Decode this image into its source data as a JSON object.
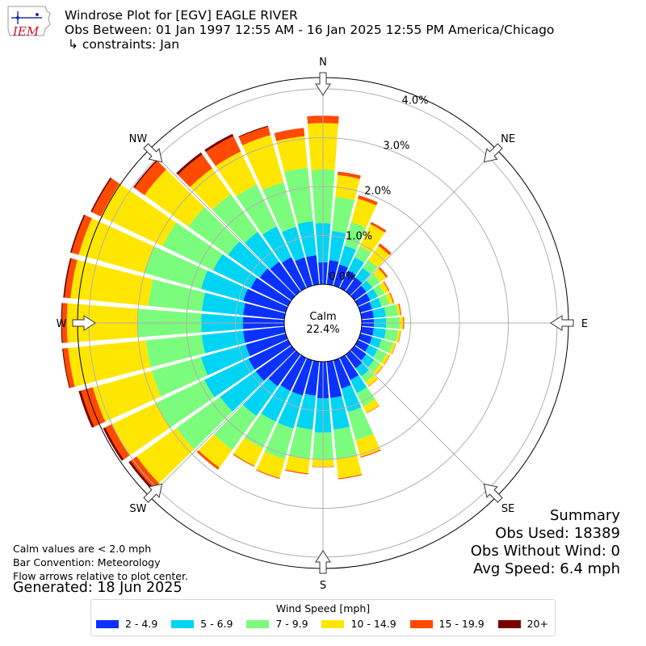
{
  "header": {
    "title": "Windrose Plot for [EGV] EAGLE RIVER",
    "obs_between": "Obs Between: 01 Jan 1997 12:55 AM - 16 Jan 2025 12:55 PM America/Chicago",
    "constraints": "↳ constraints: Jan",
    "logo_text": "IEM"
  },
  "notes": {
    "line1": "Calm values are < 2.0 mph",
    "line2": "Bar Convention: Meteorology",
    "line3": "Flow arrows relative to plot center.",
    "generated": "Generated: 18 Jun 2025"
  },
  "summary": {
    "title": "Summary",
    "obs_used": "Obs Used: 18389",
    "obs_without_wind": "Obs Without Wind: 0",
    "avg_speed": "Avg Speed: 6.4 mph"
  },
  "colors": {
    "2-4.9": "#0a32ff",
    "5-6.9": "#00d4f5",
    "7-9.9": "#7cfc7c",
    "10-14.9": "#ffe600",
    "15-19.9": "#ff4a00",
    "20+": "#7a0000"
  },
  "chart_data": {
    "type": "windrose",
    "calm_label": "Calm",
    "calm_value": "22.4%",
    "directions": [
      "N",
      "NE",
      "E",
      "SE",
      "S",
      "SW",
      "W",
      "NW"
    ],
    "radial_ticks": [
      "1.0%",
      "2.0%",
      "3.0%",
      "4.0%"
    ],
    "legend_title": "Wind Speed [mph]",
    "bins": [
      "2 - 4.9",
      "5 - 6.9",
      "7 - 9.9",
      "10 - 14.9",
      "15 - 19.9",
      "20+"
    ],
    "sectors_deg": [
      0,
      10,
      20,
      30,
      40,
      50,
      60,
      70,
      80,
      90,
      100,
      110,
      120,
      130,
      140,
      150,
      160,
      170,
      180,
      190,
      200,
      210,
      220,
      230,
      240,
      250,
      260,
      270,
      280,
      290,
      300,
      310,
      320,
      330,
      340,
      350
    ],
    "cumulative_percent": [
      [
        0.45,
        1.25,
        2.35,
        3.3,
        3.45,
        3.45
      ],
      [
        0.5,
        1.1,
        1.8,
        2.25,
        2.32,
        2.32
      ],
      [
        0.45,
        0.85,
        1.35,
        1.85,
        1.92,
        1.92
      ],
      [
        0.4,
        0.7,
        0.95,
        1.45,
        1.5,
        1.5
      ],
      [
        0.35,
        0.6,
        0.8,
        1.15,
        1.21,
        1.21
      ],
      [
        0.3,
        0.45,
        0.65,
        0.8,
        0.84,
        0.84
      ],
      [
        0.28,
        0.45,
        0.6,
        0.7,
        0.72,
        0.72
      ],
      [
        0.25,
        0.45,
        0.62,
        0.7,
        0.72,
        0.72
      ],
      [
        0.25,
        0.5,
        0.75,
        0.8,
        0.82,
        0.82
      ],
      [
        0.25,
        0.5,
        0.78,
        0.85,
        0.87,
        0.87
      ],
      [
        0.25,
        0.5,
        0.75,
        0.8,
        0.81,
        0.81
      ],
      [
        0.25,
        0.45,
        0.7,
        0.75,
        0.76,
        0.76
      ],
      [
        0.25,
        0.45,
        0.65,
        0.72,
        0.73,
        0.73
      ],
      [
        0.3,
        0.5,
        0.65,
        0.72,
        0.73,
        0.73
      ],
      [
        0.35,
        0.55,
        0.7,
        0.8,
        0.81,
        0.81
      ],
      [
        0.5,
        0.8,
        1.1,
        1.25,
        1.26,
        1.26
      ],
      [
        0.6,
        1.1,
        1.7,
        2.05,
        2.07,
        2.07
      ],
      [
        0.75,
        1.4,
        2.0,
        2.4,
        2.42,
        2.42
      ],
      [
        0.75,
        1.45,
        2.0,
        2.15,
        2.16,
        2.16
      ],
      [
        0.7,
        1.4,
        2.0,
        2.3,
        2.32,
        2.32
      ],
      [
        0.75,
        1.45,
        2.1,
        2.5,
        2.52,
        2.52
      ],
      [
        0.75,
        1.45,
        2.05,
        2.45,
        2.47,
        2.47
      ],
      [
        0.8,
        1.55,
        2.4,
        2.85,
        2.9,
        2.9
      ],
      [
        0.9,
        1.8,
        2.9,
        3.9,
        4.05,
        4.1
      ],
      [
        0.9,
        1.9,
        3.0,
        4.0,
        4.15,
        4.2
      ],
      [
        0.85,
        1.8,
        2.85,
        4.1,
        4.35,
        4.4
      ],
      [
        0.85,
        1.7,
        2.85,
        4.45,
        4.55,
        4.57
      ],
      [
        0.85,
        1.7,
        3.0,
        4.45,
        4.55,
        4.57
      ],
      [
        0.85,
        1.7,
        2.8,
        4.4,
        4.52,
        4.55
      ],
      [
        0.9,
        1.8,
        3.0,
        4.4,
        4.55,
        4.58
      ],
      [
        0.85,
        1.7,
        2.85,
        4.25,
        4.45,
        4.48
      ],
      [
        0.8,
        1.6,
        2.6,
        3.7,
        3.95,
        3.98
      ],
      [
        0.75,
        1.5,
        2.45,
        3.1,
        3.45,
        3.5
      ],
      [
        0.7,
        1.4,
        2.35,
        3.1,
        3.45,
        3.5
      ],
      [
        0.6,
        1.25,
        2.2,
        3.2,
        3.38,
        3.4
      ],
      [
        0.6,
        1.3,
        2.4,
        3.05,
        3.22,
        3.22
      ]
    ]
  }
}
